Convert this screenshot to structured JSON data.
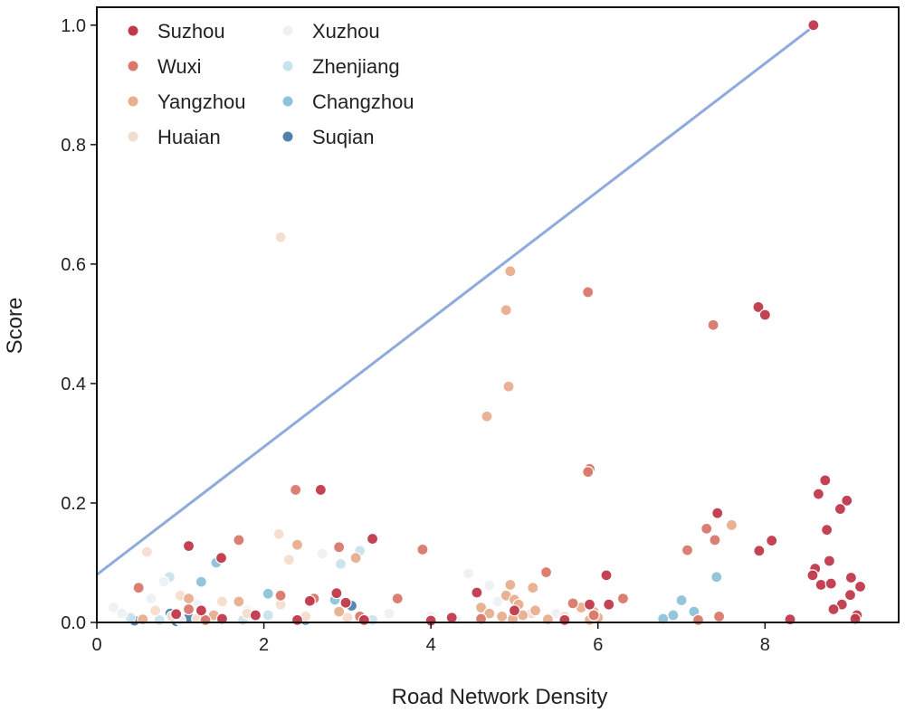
{
  "chart_data": {
    "type": "scatter",
    "title": "",
    "xlabel": "Road Network Density",
    "ylabel": "Score",
    "xlim": [
      0,
      9.6
    ],
    "ylim": [
      0,
      1.03
    ],
    "xticks": [
      0,
      2,
      4,
      6,
      8
    ],
    "yticks": [
      0.0,
      0.2,
      0.4,
      0.6,
      0.8,
      1.0
    ],
    "xtick_labels": [
      "0",
      "2",
      "4",
      "6",
      "8"
    ],
    "ytick_labels": [
      "0.0",
      "0.2",
      "0.4",
      "0.6",
      "0.8",
      "1.0"
    ],
    "grid": false,
    "legend_position": "top-left",
    "trend_line": {
      "x": [
        0,
        8.6
      ],
      "y": [
        0.08,
        1.0
      ],
      "color": "#8faadc"
    },
    "series": [
      {
        "name": "Suzhou",
        "color": "#c0394b",
        "points": [
          [
            8.58,
            1.0
          ],
          [
            7.92,
            0.528
          ],
          [
            8.0,
            0.515
          ],
          [
            1.1,
            0.128
          ],
          [
            2.68,
            0.222
          ],
          [
            8.72,
            0.238
          ],
          [
            8.64,
            0.215
          ],
          [
            8.98,
            0.204
          ],
          [
            8.9,
            0.19
          ],
          [
            7.43,
            0.183
          ],
          [
            8.74,
            0.155
          ],
          [
            3.3,
            0.14
          ],
          [
            8.08,
            0.137
          ],
          [
            1.49,
            0.108
          ],
          [
            7.93,
            0.12
          ],
          [
            8.77,
            0.103
          ],
          [
            8.6,
            0.09
          ],
          [
            9.03,
            0.075
          ],
          [
            8.57,
            0.079
          ],
          [
            6.1,
            0.079
          ],
          [
            8.67,
            0.063
          ],
          [
            9.14,
            0.06
          ],
          [
            8.79,
            0.065
          ],
          [
            4.55,
            0.05
          ],
          [
            9.02,
            0.046
          ],
          [
            2.87,
            0.049
          ],
          [
            8.92,
            0.03
          ],
          [
            2.98,
            0.033
          ],
          [
            6.13,
            0.03
          ],
          [
            8.82,
            0.022
          ],
          [
            5.9,
            0.03
          ],
          [
            2.55,
            0.036
          ],
          [
            4.25,
            0.008
          ],
          [
            8.3,
            0.005
          ],
          [
            9.1,
            0.012
          ],
          [
            9.08,
            0.006
          ],
          [
            1.25,
            0.02
          ],
          [
            1.9,
            0.012
          ],
          [
            2.4,
            0.004
          ],
          [
            5.6,
            0.004
          ],
          [
            0.95,
            0.014
          ],
          [
            1.5,
            0.006
          ],
          [
            3.2,
            0.004
          ],
          [
            5.0,
            0.02
          ],
          [
            4.0,
            0.003
          ]
        ]
      },
      {
        "name": "Wuxi",
        "color": "#d9786a",
        "points": [
          [
            5.88,
            0.553
          ],
          [
            7.38,
            0.498
          ],
          [
            2.38,
            0.222
          ],
          [
            5.9,
            0.257
          ],
          [
            5.88,
            0.252
          ],
          [
            1.7,
            0.138
          ],
          [
            3.9,
            0.122
          ],
          [
            2.9,
            0.126
          ],
          [
            7.07,
            0.121
          ],
          [
            7.3,
            0.157
          ],
          [
            7.4,
            0.138
          ],
          [
            0.5,
            0.058
          ],
          [
            5.38,
            0.084
          ],
          [
            3.6,
            0.04
          ],
          [
            2.6,
            0.04
          ],
          [
            6.3,
            0.04
          ],
          [
            5.7,
            0.032
          ],
          [
            1.1,
            0.022
          ],
          [
            3.15,
            0.01
          ],
          [
            5.95,
            0.012
          ],
          [
            7.45,
            0.01
          ],
          [
            2.2,
            0.045
          ],
          [
            4.6,
            0.006
          ],
          [
            7.2,
            0.004
          ],
          [
            1.3,
            0.004
          ]
        ]
      },
      {
        "name": "Yangzhou",
        "color": "#e8ae8e",
        "points": [
          [
            4.95,
            0.588
          ],
          [
            4.9,
            0.523
          ],
          [
            4.93,
            0.395
          ],
          [
            4.67,
            0.345
          ],
          [
            2.4,
            0.13
          ],
          [
            3.1,
            0.108
          ],
          [
            7.6,
            0.163
          ],
          [
            4.95,
            0.063
          ],
          [
            5.22,
            0.058
          ],
          [
            4.9,
            0.045
          ],
          [
            5.0,
            0.038
          ],
          [
            5.05,
            0.03
          ],
          [
            1.7,
            0.035
          ],
          [
            1.1,
            0.04
          ],
          [
            4.6,
            0.025
          ],
          [
            5.25,
            0.02
          ],
          [
            5.8,
            0.025
          ],
          [
            5.95,
            0.018
          ],
          [
            5.1,
            0.012
          ],
          [
            4.85,
            0.01
          ],
          [
            4.98,
            0.006
          ],
          [
            5.4,
            0.005
          ],
          [
            2.9,
            0.018
          ],
          [
            1.4,
            0.012
          ],
          [
            0.55,
            0.005
          ],
          [
            5.9,
            0.004
          ],
          [
            6.0,
            0.008
          ],
          [
            4.7,
            0.015
          ]
        ]
      },
      {
        "name": "Huaian",
        "color": "#f3ddcf",
        "points": [
          [
            2.2,
            0.645
          ],
          [
            2.18,
            0.148
          ],
          [
            0.6,
            0.118
          ],
          [
            2.3,
            0.105
          ],
          [
            1.0,
            0.045
          ],
          [
            1.5,
            0.035
          ],
          [
            2.2,
            0.03
          ],
          [
            0.7,
            0.02
          ],
          [
            1.8,
            0.015
          ],
          [
            2.5,
            0.01
          ],
          [
            3.0,
            0.008
          ],
          [
            1.2,
            0.006
          ],
          [
            0.9,
            0.01
          ],
          [
            5.2,
            0.015
          ],
          [
            5.6,
            0.01
          ]
        ]
      },
      {
        "name": "Xuzhou",
        "color": "#eef1f4",
        "points": [
          [
            2.7,
            0.115
          ],
          [
            4.45,
            0.082
          ],
          [
            0.8,
            0.068
          ],
          [
            4.7,
            0.062
          ],
          [
            0.5,
            0.06
          ],
          [
            0.65,
            0.04
          ],
          [
            4.8,
            0.035
          ],
          [
            1.2,
            0.03
          ],
          [
            0.2,
            0.025
          ],
          [
            1.8,
            0.02
          ],
          [
            3.5,
            0.015
          ],
          [
            4.0,
            0.01
          ],
          [
            5.0,
            0.006
          ],
          [
            0.3,
            0.015
          ],
          [
            2.5,
            0.008
          ],
          [
            1.0,
            0.004
          ],
          [
            4.3,
            0.004
          ],
          [
            5.5,
            0.015
          ]
        ]
      },
      {
        "name": "Zhenjiang",
        "color": "#c9e3ec",
        "points": [
          [
            0.87,
            0.076
          ],
          [
            3.15,
            0.12
          ],
          [
            2.92,
            0.098
          ],
          [
            1.38,
            0.01
          ],
          [
            2.05,
            0.012
          ],
          [
            0.4,
            0.008
          ],
          [
            0.75,
            0.004
          ],
          [
            1.75,
            0.004
          ],
          [
            3.3,
            0.004
          ]
        ]
      },
      {
        "name": "Changzhou",
        "color": "#8dc3d9",
        "points": [
          [
            1.25,
            0.068
          ],
          [
            1.43,
            0.1
          ],
          [
            7.42,
            0.076
          ],
          [
            2.05,
            0.048
          ],
          [
            7.0,
            0.037
          ],
          [
            7.15,
            0.018
          ],
          [
            6.9,
            0.012
          ],
          [
            6.78,
            0.006
          ],
          [
            2.85,
            0.038
          ],
          [
            1.0,
            0.004
          ]
        ]
      },
      {
        "name": "Suqian",
        "color": "#4e82ad",
        "points": [
          [
            0.45,
            0.003
          ],
          [
            0.88,
            0.015
          ],
          [
            1.1,
            0.008
          ],
          [
            3.05,
            0.028
          ],
          [
            2.5,
            0.004
          ],
          [
            1.3,
            0.004
          ],
          [
            0.95,
            0.002
          ]
        ]
      }
    ]
  }
}
